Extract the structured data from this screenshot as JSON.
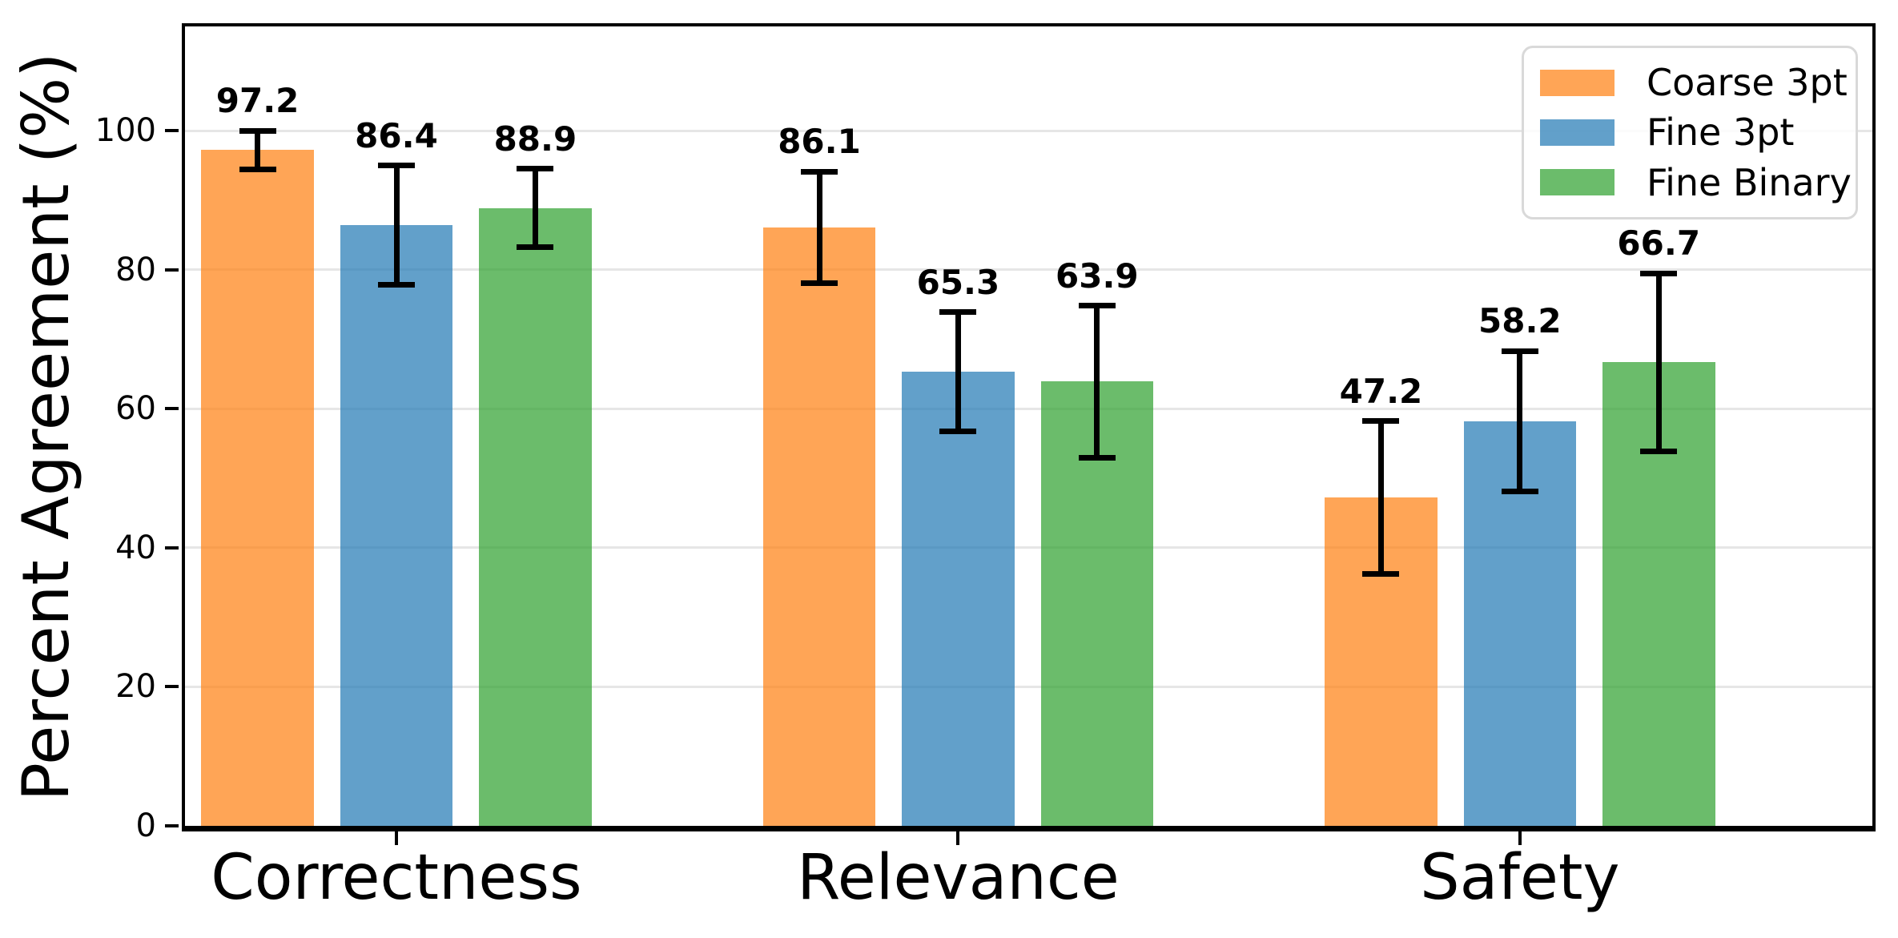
{
  "chart_data": {
    "type": "bar",
    "title": "",
    "xlabel": "",
    "ylabel": "Percent Agreement (%)",
    "categories": [
      "Correctness",
      "Relevance",
      "Safety"
    ],
    "series": [
      {
        "name": "Coarse 3pt",
        "color": "#FF7F0E",
        "fill_alpha": 0.7,
        "rendered_color": "#FFA556",
        "values": [
          97.2,
          86.1,
          47.2
        ],
        "errors": [
          2.8,
          8.0,
          11.0
        ]
      },
      {
        "name": "Fine 3pt",
        "color": "#1F77B4",
        "fill_alpha": 0.7,
        "rendered_color": "#62A0CB",
        "values": [
          86.4,
          65.3,
          58.2
        ],
        "errors": [
          8.6,
          8.6,
          10.1
        ]
      },
      {
        "name": "Fine Binary",
        "color": "#2CA02C",
        "fill_alpha": 0.7,
        "rendered_color": "#6BBD6B",
        "values": [
          88.9,
          63.9,
          66.7
        ],
        "errors": [
          5.6,
          10.9,
          12.8
        ]
      }
    ],
    "value_labels": [
      [
        "97.2",
        "86.4",
        "88.9"
      ],
      [
        "86.1",
        "65.3",
        "63.9"
      ],
      [
        "47.2",
        "58.2",
        "66.7"
      ]
    ],
    "yticks": [
      0,
      20,
      40,
      60,
      80,
      100
    ],
    "ylim": [
      0,
      115
    ],
    "grid": true,
    "gridline_color": "#e6e6e6",
    "error_bar_color": "#000000",
    "legend_position": "upper right",
    "legend_labels": [
      "Coarse 3pt",
      "Fine 3pt",
      "Fine Binary"
    ]
  }
}
